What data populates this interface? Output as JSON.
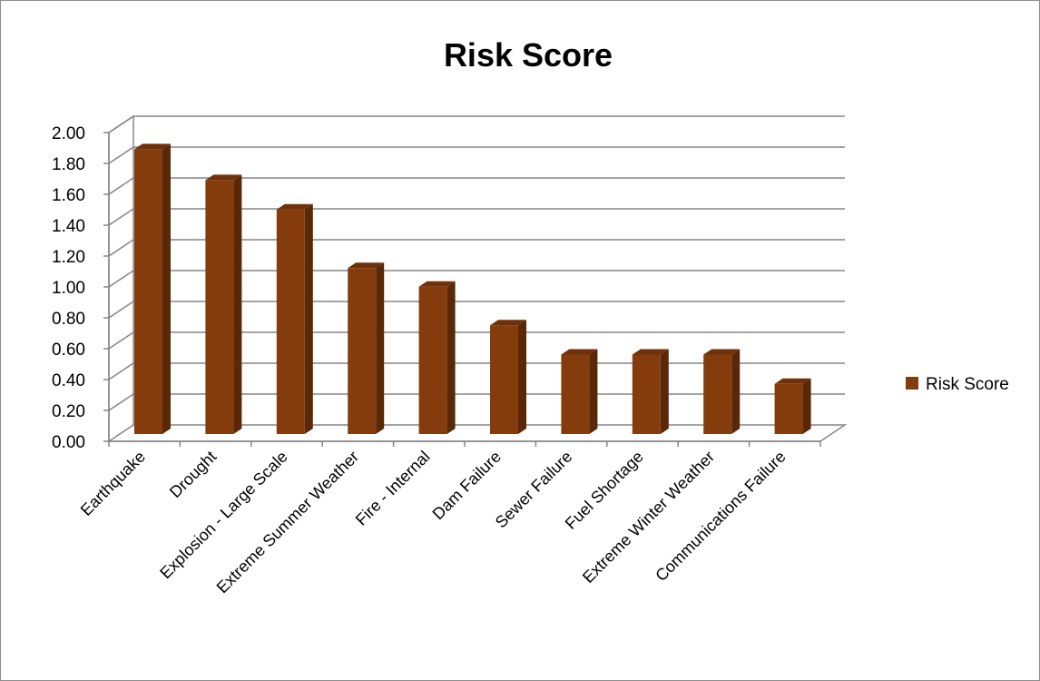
{
  "chart_data": {
    "type": "bar",
    "title": "Risk Score",
    "categories": [
      "Earthquake",
      "Drought",
      "Explosion - Large Scale",
      "Extreme Summer Weather",
      "Fire - Internal",
      "Dam Failure",
      "Sewer Failure",
      "Fuel Shortage",
      "Extreme Winter Weather",
      "Communications Failure"
    ],
    "series": [
      {
        "name": "Risk Score",
        "color": "#843c0c",
        "values": [
          1.88,
          1.68,
          1.49,
          1.11,
          0.99,
          0.74,
          0.55,
          0.55,
          0.55,
          0.36
        ]
      }
    ],
    "yticks": [
      "0.00",
      "0.20",
      "0.40",
      "0.60",
      "0.80",
      "1.00",
      "1.20",
      "1.40",
      "1.60",
      "1.80",
      "2.00"
    ],
    "ylim": [
      0,
      2
    ],
    "grid": true,
    "legend_position": "right",
    "style": "3d-column"
  }
}
